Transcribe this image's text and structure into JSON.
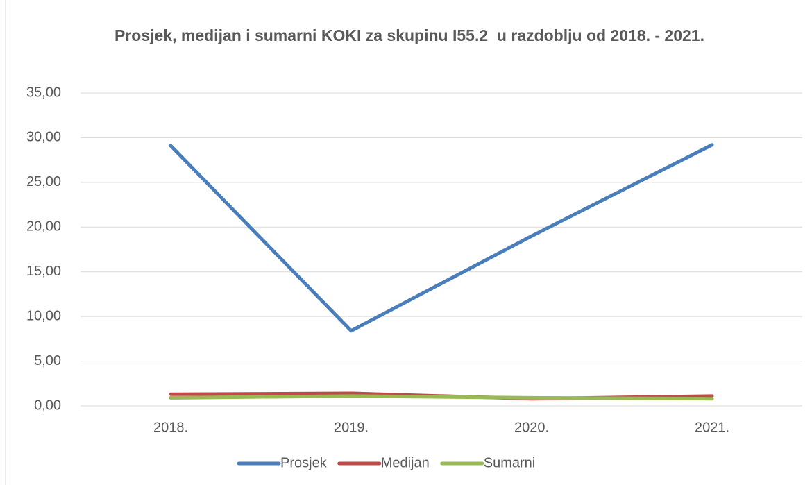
{
  "chart_data": {
    "type": "line",
    "title": "Prosjek, medijan i sumarni KOKI za skupinu I55.2  u razdoblju od 2018. - 2021.",
    "categories": [
      "2018.",
      "2019.",
      "2020.",
      "2021."
    ],
    "series": [
      {
        "name": "Prosjek",
        "color": "#4a7ebb",
        "values": [
          29.1,
          8.4,
          19.0,
          29.2
        ]
      },
      {
        "name": "Medijan",
        "color": "#be4b48",
        "values": [
          1.3,
          1.4,
          0.8,
          1.1
        ]
      },
      {
        "name": "Sumarni",
        "color": "#98b954",
        "values": [
          0.9,
          1.1,
          0.9,
          0.8
        ]
      }
    ],
    "ylim": [
      0,
      35
    ],
    "yticks": [
      {
        "value": 0,
        "label": "0,00"
      },
      {
        "value": 5,
        "label": "5,00"
      },
      {
        "value": 10,
        "label": "10,00"
      },
      {
        "value": 15,
        "label": "15,00"
      },
      {
        "value": 20,
        "label": "20,00"
      },
      {
        "value": 25,
        "label": "25,00"
      },
      {
        "value": 30,
        "label": "30,00"
      },
      {
        "value": 35,
        "label": "35,00"
      }
    ],
    "grid": true,
    "legend": "bottom"
  }
}
